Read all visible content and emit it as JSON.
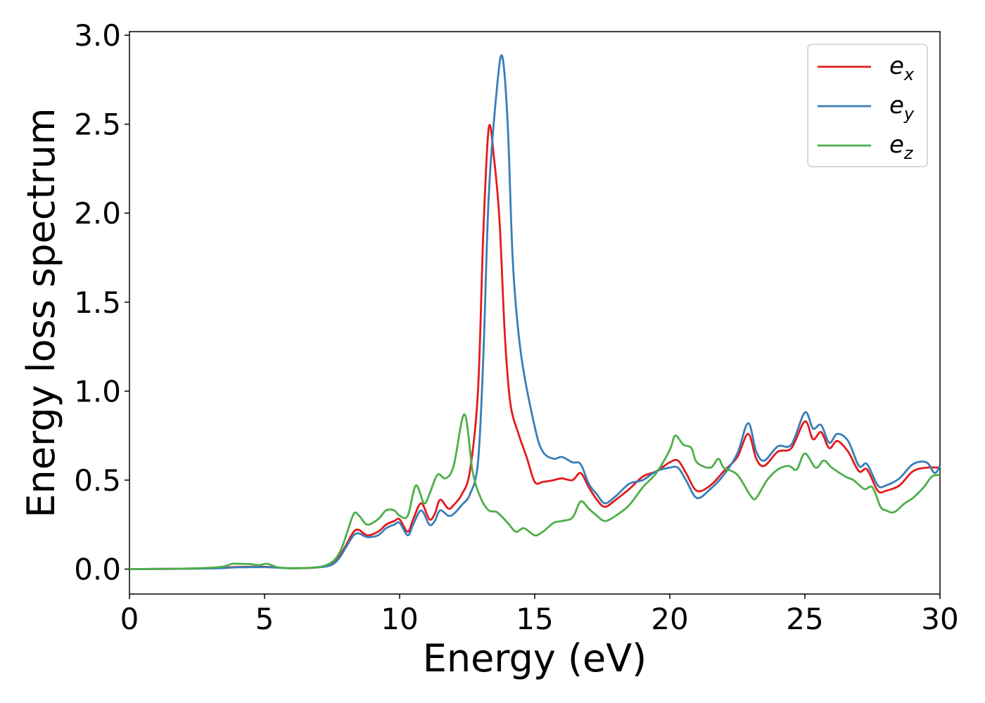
{
  "chart_data": {
    "type": "line",
    "xlabel": "Energy (eV)",
    "ylabel": "Energy loss spectrum",
    "xlim": [
      0,
      30
    ],
    "ylim": [
      -0.14,
      3.02
    ],
    "xticks": [
      0,
      5,
      10,
      15,
      20,
      25,
      30
    ],
    "xtick_labels": [
      "0",
      "5",
      "10",
      "15",
      "20",
      "25",
      "30"
    ],
    "yticks": [
      0.0,
      0.5,
      1.0,
      1.5,
      2.0,
      2.5,
      3.0
    ],
    "ytick_labels": [
      "0.0",
      "0.5",
      "1.0",
      "1.5",
      "2.0",
      "2.5",
      "3.0"
    ],
    "grid": false,
    "legend_position": "top-right",
    "series": [
      {
        "name": "e_x",
        "label_base": "e",
        "label_sub": "x",
        "color": "#e41a1c",
        "points": [
          [
            0,
            0
          ],
          [
            2,
            0.002
          ],
          [
            3,
            0.005
          ],
          [
            3.5,
            0.008
          ],
          [
            4,
            0.012
          ],
          [
            5,
            0.013
          ],
          [
            6,
            0.005
          ],
          [
            7,
            0.01
          ],
          [
            7.5,
            0.03
          ],
          [
            7.8,
            0.08
          ],
          [
            8,
            0.13
          ],
          [
            8.3,
            0.21
          ],
          [
            8.5,
            0.22
          ],
          [
            8.8,
            0.19
          ],
          [
            9.2,
            0.21
          ],
          [
            9.5,
            0.25
          ],
          [
            9.8,
            0.27
          ],
          [
            10,
            0.28
          ],
          [
            10.3,
            0.21
          ],
          [
            10.5,
            0.28
          ],
          [
            10.8,
            0.37
          ],
          [
            11.1,
            0.28
          ],
          [
            11.3,
            0.31
          ],
          [
            11.5,
            0.39
          ],
          [
            11.8,
            0.34
          ],
          [
            12,
            0.36
          ],
          [
            12.3,
            0.42
          ],
          [
            12.6,
            0.55
          ],
          [
            12.9,
            1.0
          ],
          [
            13.1,
            1.9
          ],
          [
            13.3,
            2.48
          ],
          [
            13.5,
            2.3
          ],
          [
            13.7,
            1.95
          ],
          [
            13.9,
            1.3
          ],
          [
            14.1,
            0.93
          ],
          [
            14.4,
            0.76
          ],
          [
            14.7,
            0.63
          ],
          [
            15,
            0.49
          ],
          [
            15.3,
            0.49
          ],
          [
            15.7,
            0.5
          ],
          [
            16,
            0.51
          ],
          [
            16.4,
            0.5
          ],
          [
            16.7,
            0.54
          ],
          [
            17,
            0.46
          ],
          [
            17.3,
            0.39
          ],
          [
            17.6,
            0.35
          ],
          [
            18,
            0.39
          ],
          [
            18.5,
            0.45
          ],
          [
            19,
            0.52
          ],
          [
            19.5,
            0.55
          ],
          [
            20,
            0.6
          ],
          [
            20.3,
            0.61
          ],
          [
            20.6,
            0.54
          ],
          [
            21,
            0.44
          ],
          [
            21.5,
            0.47
          ],
          [
            22,
            0.55
          ],
          [
            22.5,
            0.63
          ],
          [
            22.9,
            0.76
          ],
          [
            23.2,
            0.62
          ],
          [
            23.5,
            0.58
          ],
          [
            24,
            0.66
          ],
          [
            24.5,
            0.68
          ],
          [
            25,
            0.83
          ],
          [
            25.3,
            0.73
          ],
          [
            25.6,
            0.77
          ],
          [
            25.9,
            0.68
          ],
          [
            26.2,
            0.72
          ],
          [
            26.6,
            0.66
          ],
          [
            27,
            0.55
          ],
          [
            27.3,
            0.56
          ],
          [
            27.7,
            0.44
          ],
          [
            28,
            0.44
          ],
          [
            28.5,
            0.47
          ],
          [
            29,
            0.55
          ],
          [
            29.5,
            0.57
          ],
          [
            30,
            0.57
          ]
        ]
      },
      {
        "name": "e_y",
        "label_base": "e",
        "label_sub": "y",
        "color": "#377eb8",
        "points": [
          [
            0,
            0
          ],
          [
            2,
            0.002
          ],
          [
            3,
            0.004
          ],
          [
            3.5,
            0.006
          ],
          [
            4,
            0.01
          ],
          [
            5,
            0.011
          ],
          [
            6,
            0.005
          ],
          [
            7,
            0.01
          ],
          [
            7.5,
            0.025
          ],
          [
            7.8,
            0.07
          ],
          [
            8,
            0.12
          ],
          [
            8.3,
            0.19
          ],
          [
            8.5,
            0.2
          ],
          [
            8.8,
            0.18
          ],
          [
            9.2,
            0.19
          ],
          [
            9.5,
            0.23
          ],
          [
            9.8,
            0.25
          ],
          [
            10,
            0.26
          ],
          [
            10.3,
            0.19
          ],
          [
            10.5,
            0.25
          ],
          [
            10.8,
            0.33
          ],
          [
            11.1,
            0.25
          ],
          [
            11.3,
            0.27
          ],
          [
            11.5,
            0.33
          ],
          [
            11.8,
            0.3
          ],
          [
            12,
            0.31
          ],
          [
            12.3,
            0.36
          ],
          [
            12.6,
            0.42
          ],
          [
            12.9,
            0.6
          ],
          [
            13.1,
            1.2
          ],
          [
            13.3,
            2.1
          ],
          [
            13.6,
            2.7
          ],
          [
            13.8,
            2.88
          ],
          [
            14,
            2.5
          ],
          [
            14.2,
            1.7
          ],
          [
            14.5,
            1.2
          ],
          [
            15,
            0.8
          ],
          [
            15.3,
            0.66
          ],
          [
            15.7,
            0.62
          ],
          [
            16,
            0.63
          ],
          [
            16.4,
            0.6
          ],
          [
            16.7,
            0.59
          ],
          [
            17,
            0.48
          ],
          [
            17.3,
            0.42
          ],
          [
            17.6,
            0.37
          ],
          [
            18,
            0.41
          ],
          [
            18.5,
            0.48
          ],
          [
            19,
            0.5
          ],
          [
            19.5,
            0.55
          ],
          [
            20,
            0.57
          ],
          [
            20.3,
            0.57
          ],
          [
            20.6,
            0.5
          ],
          [
            21,
            0.4
          ],
          [
            21.5,
            0.45
          ],
          [
            22,
            0.53
          ],
          [
            22.5,
            0.65
          ],
          [
            22.9,
            0.82
          ],
          [
            23.2,
            0.66
          ],
          [
            23.5,
            0.61
          ],
          [
            24,
            0.69
          ],
          [
            24.5,
            0.7
          ],
          [
            25,
            0.88
          ],
          [
            25.3,
            0.79
          ],
          [
            25.6,
            0.81
          ],
          [
            25.9,
            0.71
          ],
          [
            26.2,
            0.76
          ],
          [
            26.6,
            0.72
          ],
          [
            27,
            0.58
          ],
          [
            27.3,
            0.59
          ],
          [
            27.7,
            0.47
          ],
          [
            28,
            0.47
          ],
          [
            28.5,
            0.51
          ],
          [
            29,
            0.59
          ],
          [
            29.5,
            0.6
          ],
          [
            29.8,
            0.54
          ],
          [
            30,
            0.58
          ]
        ]
      },
      {
        "name": "e_z",
        "label_base": "e",
        "label_sub": "z",
        "color": "#4daf4a",
        "points": [
          [
            0,
            0
          ],
          [
            2,
            0.003
          ],
          [
            3,
            0.008
          ],
          [
            3.5,
            0.015
          ],
          [
            3.8,
            0.03
          ],
          [
            4,
            0.03
          ],
          [
            4.5,
            0.028
          ],
          [
            4.8,
            0.022
          ],
          [
            5.1,
            0.03
          ],
          [
            5.5,
            0.01
          ],
          [
            6,
            0.005
          ],
          [
            7,
            0.012
          ],
          [
            7.5,
            0.04
          ],
          [
            7.8,
            0.1
          ],
          [
            8,
            0.18
          ],
          [
            8.3,
            0.31
          ],
          [
            8.5,
            0.3
          ],
          [
            8.8,
            0.25
          ],
          [
            9.2,
            0.28
          ],
          [
            9.5,
            0.33
          ],
          [
            9.8,
            0.33
          ],
          [
            10,
            0.3
          ],
          [
            10.3,
            0.3
          ],
          [
            10.6,
            0.47
          ],
          [
            10.9,
            0.37
          ],
          [
            11.1,
            0.42
          ],
          [
            11.4,
            0.53
          ],
          [
            11.7,
            0.51
          ],
          [
            12,
            0.58
          ],
          [
            12.4,
            0.87
          ],
          [
            12.7,
            0.55
          ],
          [
            13,
            0.4
          ],
          [
            13.3,
            0.33
          ],
          [
            13.6,
            0.32
          ],
          [
            14,
            0.26
          ],
          [
            14.3,
            0.21
          ],
          [
            14.6,
            0.23
          ],
          [
            15,
            0.19
          ],
          [
            15.3,
            0.21
          ],
          [
            15.7,
            0.26
          ],
          [
            16,
            0.27
          ],
          [
            16.4,
            0.29
          ],
          [
            16.7,
            0.38
          ],
          [
            17,
            0.34
          ],
          [
            17.3,
            0.3
          ],
          [
            17.6,
            0.27
          ],
          [
            18,
            0.3
          ],
          [
            18.5,
            0.36
          ],
          [
            19,
            0.46
          ],
          [
            19.5,
            0.54
          ],
          [
            20,
            0.67
          ],
          [
            20.2,
            0.75
          ],
          [
            20.5,
            0.7
          ],
          [
            20.8,
            0.68
          ],
          [
            21,
            0.6
          ],
          [
            21.5,
            0.57
          ],
          [
            21.8,
            0.62
          ],
          [
            22,
            0.57
          ],
          [
            22.5,
            0.53
          ],
          [
            23,
            0.41
          ],
          [
            23.2,
            0.4
          ],
          [
            23.6,
            0.5
          ],
          [
            24,
            0.56
          ],
          [
            24.4,
            0.58
          ],
          [
            24.7,
            0.56
          ],
          [
            25,
            0.65
          ],
          [
            25.4,
            0.57
          ],
          [
            25.7,
            0.61
          ],
          [
            26,
            0.57
          ],
          [
            26.5,
            0.52
          ],
          [
            26.8,
            0.5
          ],
          [
            27.2,
            0.45
          ],
          [
            27.5,
            0.46
          ],
          [
            27.8,
            0.35
          ],
          [
            28,
            0.33
          ],
          [
            28.3,
            0.32
          ],
          [
            28.7,
            0.37
          ],
          [
            29,
            0.4
          ],
          [
            29.4,
            0.46
          ],
          [
            29.7,
            0.52
          ],
          [
            30,
            0.53
          ]
        ]
      }
    ]
  }
}
